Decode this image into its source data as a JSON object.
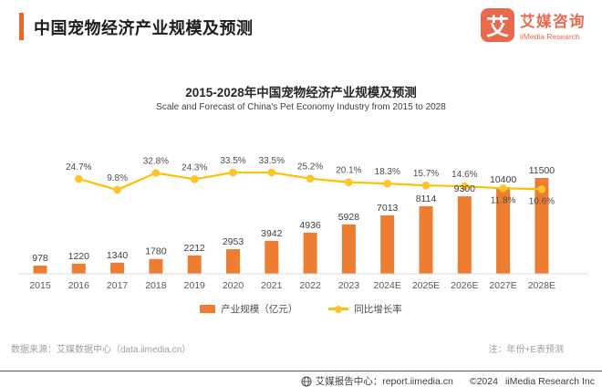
{
  "header": {
    "title": "中国宠物经济产业规模及预测"
  },
  "logo": {
    "icon_char": "艾",
    "name_cn": "艾媒咨询",
    "name_en": "iiMedia Research"
  },
  "chart": {
    "title": "2015-2028年中国宠物经济产业规模及预测",
    "subtitle": "Scale and Forecast of China's Pet Economy Industry from 2015 to 2028"
  },
  "chart_data": {
    "type": "bar",
    "categories": [
      "2015",
      "2016",
      "2017",
      "2018",
      "2019",
      "2020",
      "2021",
      "2022",
      "2023",
      "2024E",
      "2025E",
      "2026E",
      "2027E",
      "2028E"
    ],
    "series": [
      {
        "name": "产业规模（亿元）",
        "type": "bar",
        "color": "#ED7D31",
        "values": [
          978,
          1220,
          1340,
          1780,
          2212,
          2953,
          3942,
          4936,
          5928,
          7013,
          8114,
          9300,
          10400,
          11500
        ]
      },
      {
        "name": "同比增长率",
        "type": "line",
        "color": "#FFC000",
        "unit": "%",
        "values": [
          null,
          24.7,
          9.8,
          32.8,
          24.3,
          33.5,
          33.5,
          25.2,
          20.1,
          18.3,
          15.7,
          14.6,
          11.8,
          10.6
        ]
      }
    ],
    "ylim": [
      0,
      12000
    ],
    "grid": false,
    "legend_position": "bottom"
  },
  "footnotes": {
    "source": "数据来源：艾媒数据中心（data.iimedia.cn）",
    "note": "注：年份+E表预测"
  },
  "footer": {
    "report_center": "艾媒报告中心：report.iimedia.cn",
    "copyright_year": "©2024",
    "copyright_name": "iiMedia Research Inc"
  },
  "colors": {
    "accent": "#EC662B",
    "brand": "#E8694B",
    "bar": "#ED7D31",
    "line": "#FFC000",
    "dot": "#FFC32C"
  }
}
